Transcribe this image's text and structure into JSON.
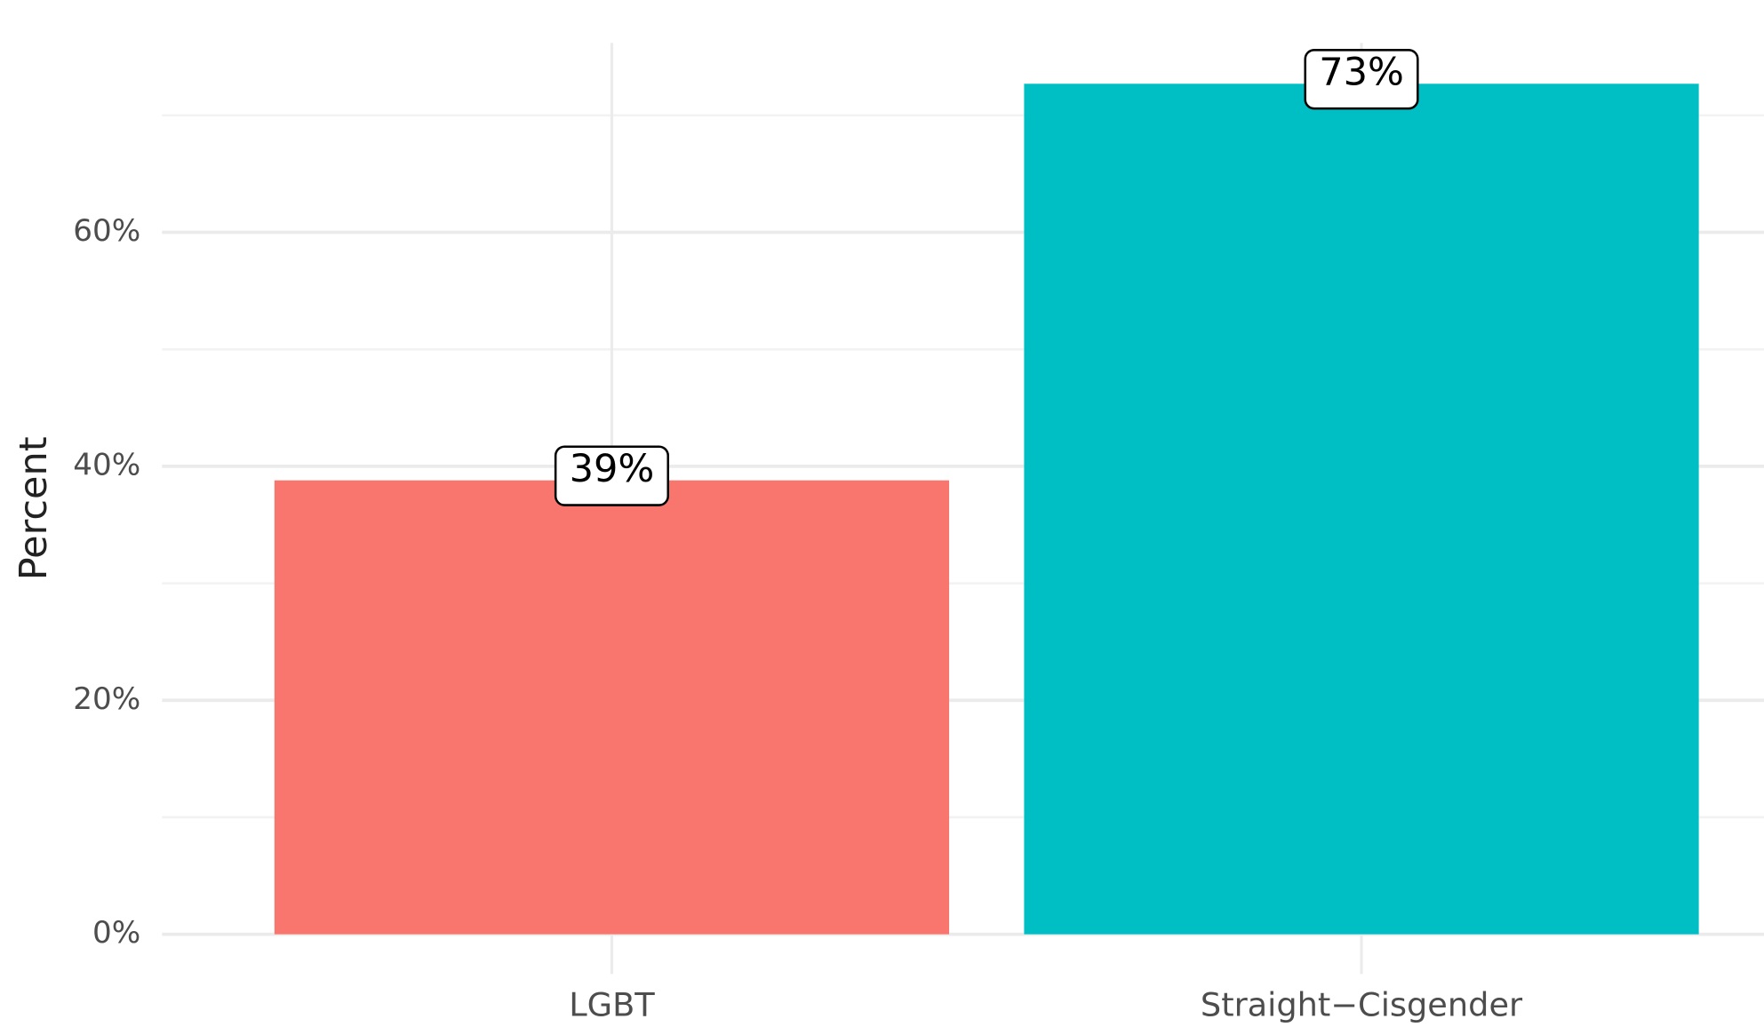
{
  "chart_data": {
    "type": "bar",
    "y_label": "Percent",
    "categories": [
      "LGBT",
      "Straight−Cisgender"
    ],
    "values": [
      38.8,
      72.7
    ],
    "value_labels": [
      "39%",
      "73%"
    ],
    "colors": [
      "#F8766D",
      "#00BFC4"
    ],
    "ylim": [
      -3.4,
      76.2
    ],
    "yticks": [
      {
        "value": 0,
        "label": "0%"
      },
      {
        "value": 20,
        "label": "20%"
      },
      {
        "value": 40,
        "label": "40%"
      },
      {
        "value": 60,
        "label": "60%"
      }
    ],
    "yminor": [
      10,
      30,
      50,
      70
    ],
    "grid": true
  }
}
